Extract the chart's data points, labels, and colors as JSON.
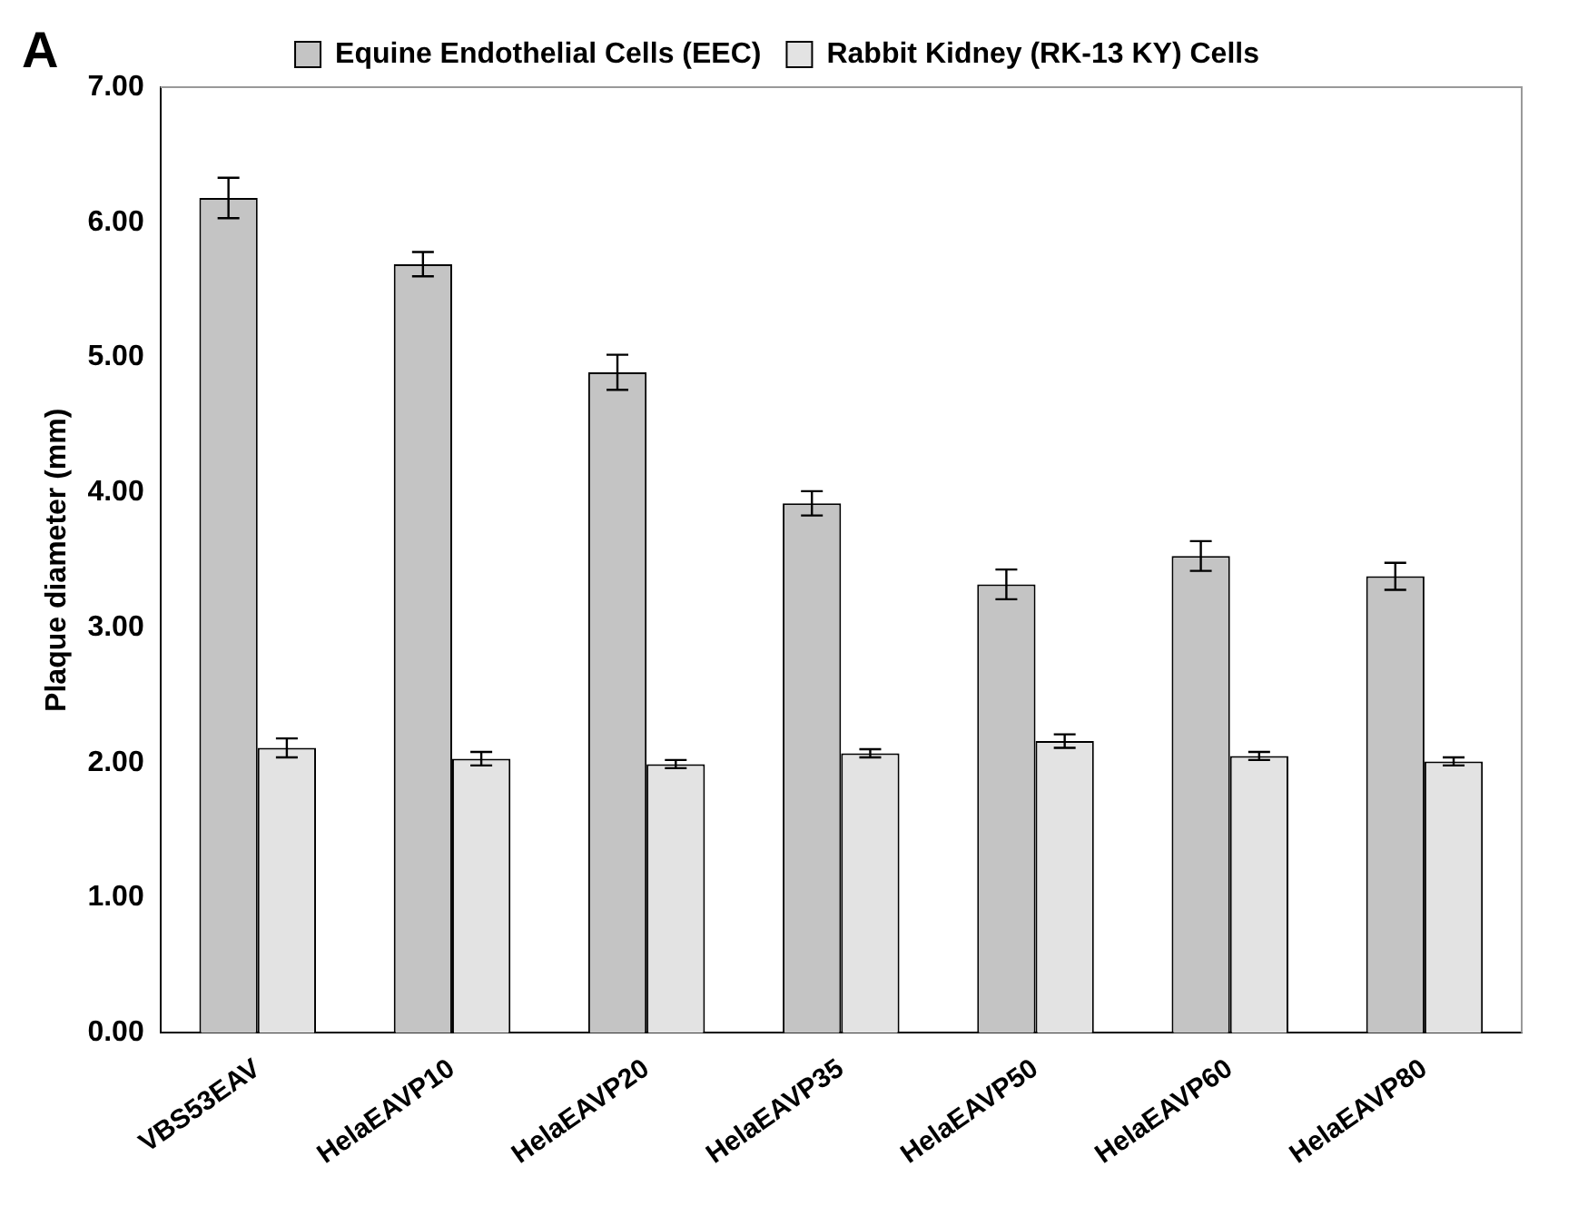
{
  "chart_data": {
    "type": "bar",
    "ylabel": "Plaque diameter (mm)",
    "annotations": [
      "A"
    ],
    "categories": [
      "VBS53EAV",
      "HelaEAVP10",
      "HelaEAVP20",
      "HelaEAVP35",
      "HelaEAVP50",
      "HelaEAVP60",
      "HelaEAVP80"
    ],
    "series": [
      {
        "name": "Equine Endothelial Cells (EEC)",
        "color": "#c4c4c4",
        "values": [
          6.18,
          5.69,
          4.89,
          3.92,
          3.32,
          3.53,
          3.38
        ],
        "errors": [
          0.15,
          0.09,
          0.13,
          0.09,
          0.11,
          0.11,
          0.1
        ]
      },
      {
        "name": "Rabbit Kidney (RK-13 KY) Cells",
        "color": "#e3e3e3",
        "values": [
          2.11,
          2.03,
          1.99,
          2.07,
          2.16,
          2.05,
          2.01
        ],
        "errors": [
          0.07,
          0.05,
          0.03,
          0.03,
          0.05,
          0.03,
          0.03
        ]
      }
    ],
    "ylim": [
      0,
      7
    ],
    "yticks": [
      {
        "value": 0,
        "label": "0.00"
      },
      {
        "value": 1,
        "label": "1.00"
      },
      {
        "value": 2,
        "label": "2.00"
      },
      {
        "value": 3,
        "label": "3.00"
      },
      {
        "value": 4,
        "label": "4.00"
      },
      {
        "value": 5,
        "label": "5.00"
      },
      {
        "value": 6,
        "label": "6.00"
      },
      {
        "value": 7,
        "label": "7.00"
      }
    ],
    "grid": false,
    "legend": "top"
  }
}
